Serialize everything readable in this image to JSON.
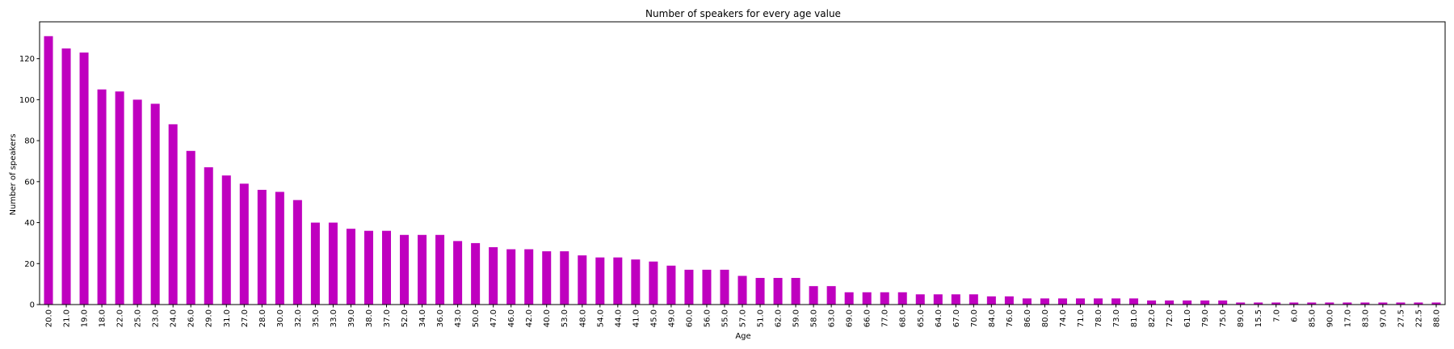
{
  "chart_data": {
    "type": "bar",
    "title": "Number of speakers for every age value",
    "xlabel": "Age",
    "ylabel": "Number of speakers",
    "ylim": [
      0,
      138
    ],
    "yticks": [
      0,
      20,
      40,
      60,
      80,
      100,
      120
    ],
    "grid": false,
    "legend": "none",
    "bar_color": "#bf00bf",
    "categories": [
      "20.0",
      "21.0",
      "19.0",
      "18.0",
      "22.0",
      "25.0",
      "23.0",
      "24.0",
      "26.0",
      "29.0",
      "31.0",
      "27.0",
      "28.0",
      "30.0",
      "32.0",
      "35.0",
      "33.0",
      "39.0",
      "38.0",
      "37.0",
      "52.0",
      "34.0",
      "36.0",
      "43.0",
      "50.0",
      "47.0",
      "46.0",
      "42.0",
      "40.0",
      "53.0",
      "48.0",
      "54.0",
      "44.0",
      "41.0",
      "45.0",
      "49.0",
      "60.0",
      "56.0",
      "55.0",
      "57.0",
      "51.0",
      "62.0",
      "59.0",
      "58.0",
      "63.0",
      "69.0",
      "66.0",
      "77.0",
      "68.0",
      "65.0",
      "64.0",
      "67.0",
      "70.0",
      "84.0",
      "76.0",
      "86.0",
      "80.0",
      "74.0",
      "71.0",
      "78.0",
      "73.0",
      "81.0",
      "82.0",
      "72.0",
      "61.0",
      "79.0",
      "75.0",
      "89.0",
      "15.5",
      "7.0",
      "6.0",
      "85.0",
      "90.0",
      "17.0",
      "83.0",
      "97.0",
      "27.5",
      "22.5",
      "88.0"
    ],
    "values": [
      131,
      125,
      123,
      105,
      104,
      100,
      98,
      88,
      75,
      67,
      63,
      59,
      56,
      55,
      51,
      40,
      40,
      37,
      36,
      36,
      34,
      34,
      34,
      31,
      30,
      28,
      27,
      27,
      26,
      26,
      24,
      23,
      23,
      22,
      21,
      19,
      17,
      17,
      17,
      14,
      13,
      13,
      13,
      9,
      9,
      6,
      6,
      6,
      6,
      5,
      5,
      5,
      5,
      4,
      4,
      3,
      3,
      3,
      3,
      3,
      3,
      3,
      2,
      2,
      2,
      2,
      2,
      1,
      1,
      1,
      1,
      1,
      1,
      1,
      1,
      1,
      1,
      1,
      1
    ]
  }
}
